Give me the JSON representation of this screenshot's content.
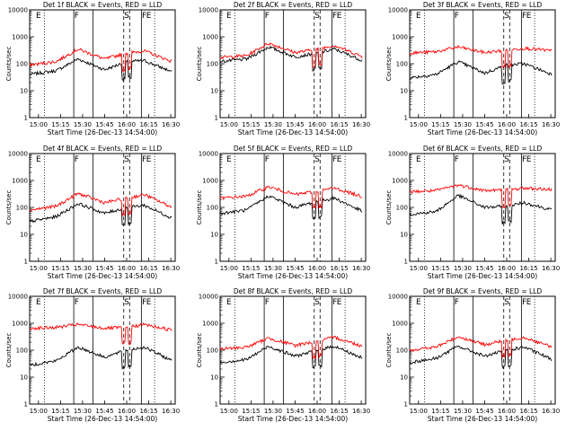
{
  "figure": {
    "ylabel": "Counts/sec",
    "xlabel": "Start Time (26-Dec-13 14:54:00)"
  },
  "axes_common": {
    "x_ticks": [
      "15:00",
      "15:15",
      "15:30",
      "15:45",
      "16:00",
      "16:15",
      "16:30"
    ],
    "x_range": [
      "14:54",
      "16:33"
    ],
    "y_scale": "log",
    "y_ticks": [
      "1",
      "10",
      "100",
      "1000",
      "10000"
    ],
    "y_range": [
      1,
      10000
    ],
    "grid": false
  },
  "colors": {
    "events": "#000000",
    "lld": "#ff0000"
  },
  "panels": [
    {
      "title": "Det 1f BLACK = Events, RED = LLD",
      "markers": [
        "E",
        "F",
        "S",
        "F",
        "E"
      ]
    },
    {
      "title": "Det 2f BLACK = Events, RED = LLD",
      "markers": [
        "E",
        "F",
        "S",
        "F",
        "E"
      ]
    },
    {
      "title": "Det 3f BLACK = Events, RED = LLD",
      "markers": [
        "E",
        "F",
        "S",
        "F",
        "E"
      ]
    },
    {
      "title": "Det 4f BLACK = Events, RED = LLD",
      "markers": [
        "E",
        "F",
        "S",
        "F",
        "E"
      ]
    },
    {
      "title": "Det 5f BLACK = Events, RED = LLD",
      "markers": [
        "E",
        "F",
        "S",
        "F",
        "E"
      ]
    },
    {
      "title": "Det 6f BLACK = Events, RED = LLD",
      "markers": [
        "E",
        "F",
        "S",
        "F",
        "E"
      ]
    },
    {
      "title": "Det 7f BLACK = Events, RED = LLD",
      "markers": [
        "E",
        "F",
        "S",
        "F",
        "E"
      ]
    },
    {
      "title": "Det 8f BLACK = Events, RED = LLD",
      "markers": [
        "E",
        "F",
        "S",
        "F",
        "E"
      ]
    },
    {
      "title": "Det 9f BLACK = Events, RED = LLD",
      "markers": [
        "E",
        "F",
        "S",
        "F",
        "E"
      ]
    }
  ],
  "chart_data": [
    {
      "type": "line",
      "title": "Det 1f BLACK = Events, RED = LLD",
      "xlabel": "Start Time (26-Dec-13 14:54:00)",
      "ylabel": "Counts/sec",
      "x": [
        "14:54",
        "15:12",
        "15:27",
        "15:45",
        "16:00",
        "16:12",
        "16:31"
      ],
      "series": [
        {
          "values": [
            40,
            55,
            150,
            60,
            120,
            130,
            50
          ]
        },
        {
          "values": [
            90,
            120,
            350,
            150,
            250,
            300,
            120
          ]
        }
      ]
    },
    {
      "type": "line",
      "title": "Det 2f BLACK = Events, RED = LLD",
      "xlabel": "Start Time (26-Dec-13 14:54:00)",
      "ylabel": "Counts/sec",
      "x": [
        "14:54",
        "15:12",
        "15:27",
        "15:45",
        "16:00",
        "16:12",
        "16:31"
      ],
      "series": [
        {
          "values": [
            120,
            150,
            420,
            180,
            250,
            350,
            130
          ]
        },
        {
          "values": [
            170,
            200,
            580,
            260,
            350,
            480,
            180
          ]
        }
      ]
    },
    {
      "type": "line",
      "title": "Det 3f BLACK = Events, RED = LLD",
      "xlabel": "Start Time (26-Dec-13 14:54:00)",
      "ylabel": "Counts/sec",
      "x": [
        "14:54",
        "15:12",
        "15:27",
        "15:45",
        "16:00",
        "16:12",
        "16:31"
      ],
      "series": [
        {
          "values": [
            30,
            40,
            120,
            45,
            90,
            100,
            40
          ]
        },
        {
          "values": [
            250,
            280,
            420,
            260,
            320,
            380,
            300
          ]
        }
      ]
    },
    {
      "type": "line",
      "title": "Det 4f BLACK = Events, RED = LLD",
      "xlabel": "Start Time (26-Dec-13 14:54:00)",
      "ylabel": "Counts/sec",
      "x": [
        "14:54",
        "15:12",
        "15:27",
        "15:45",
        "16:00",
        "16:12",
        "16:31"
      ],
      "series": [
        {
          "values": [
            30,
            45,
            140,
            60,
            100,
            120,
            40
          ]
        },
        {
          "values": [
            80,
            110,
            330,
            150,
            220,
            300,
            100
          ]
        }
      ]
    },
    {
      "type": "line",
      "title": "Det 5f BLACK = Events, RED = LLD",
      "xlabel": "Start Time (26-Dec-13 14:54:00)",
      "ylabel": "Counts/sec",
      "x": [
        "14:54",
        "15:12",
        "15:27",
        "15:45",
        "16:00",
        "16:12",
        "16:31"
      ],
      "series": [
        {
          "values": [
            60,
            80,
            270,
            100,
            170,
            220,
            70
          ]
        },
        {
          "values": [
            220,
            260,
            580,
            300,
            400,
            520,
            250
          ]
        }
      ]
    },
    {
      "type": "line",
      "title": "Det 6f BLACK = Events, RED = LLD",
      "xlabel": "Start Time (26-Dec-13 14:54:00)",
      "ylabel": "Counts/sec",
      "x": [
        "14:54",
        "15:12",
        "15:27",
        "15:45",
        "16:00",
        "16:12",
        "16:31"
      ],
      "series": [
        {
          "values": [
            55,
            70,
            280,
            100,
            110,
            150,
            80
          ]
        },
        {
          "values": [
            380,
            420,
            680,
            420,
            450,
            520,
            460
          ]
        }
      ]
    },
    {
      "type": "line",
      "title": "Det 7f BLACK = Events, RED = LLD",
      "xlabel": "Start Time (26-Dec-13 14:54:00)",
      "ylabel": "Counts/sec",
      "x": [
        "14:54",
        "15:12",
        "15:27",
        "15:45",
        "16:00",
        "16:12",
        "16:31"
      ],
      "series": [
        {
          "values": [
            28,
            40,
            130,
            55,
            100,
            130,
            40
          ]
        },
        {
          "values": [
            650,
            700,
            900,
            650,
            700,
            900,
            550
          ]
        }
      ]
    },
    {
      "type": "line",
      "title": "Det 8f BLACK = Events, RED = LLD",
      "xlabel": "Start Time (26-Dec-13 14:54:00)",
      "ylabel": "Counts/sec",
      "x": [
        "14:54",
        "15:12",
        "15:27",
        "15:45",
        "16:00",
        "16:12",
        "16:31"
      ],
      "series": [
        {
          "values": [
            35,
            45,
            140,
            60,
            100,
            140,
            50
          ]
        },
        {
          "values": [
            110,
            130,
            280,
            150,
            220,
            300,
            140
          ]
        }
      ]
    },
    {
      "type": "line",
      "title": "Det 9f BLACK = Events, RED = LLD",
      "xlabel": "Start Time (26-Dec-13 14:54:00)",
      "ylabel": "Counts/sec",
      "x": [
        "14:54",
        "15:12",
        "15:27",
        "15:45",
        "16:00",
        "16:12",
        "16:31"
      ],
      "series": [
        {
          "values": [
            35,
            50,
            140,
            60,
            100,
            130,
            45
          ]
        },
        {
          "values": [
            100,
            130,
            320,
            160,
            240,
            300,
            130
          ]
        }
      ]
    }
  ]
}
